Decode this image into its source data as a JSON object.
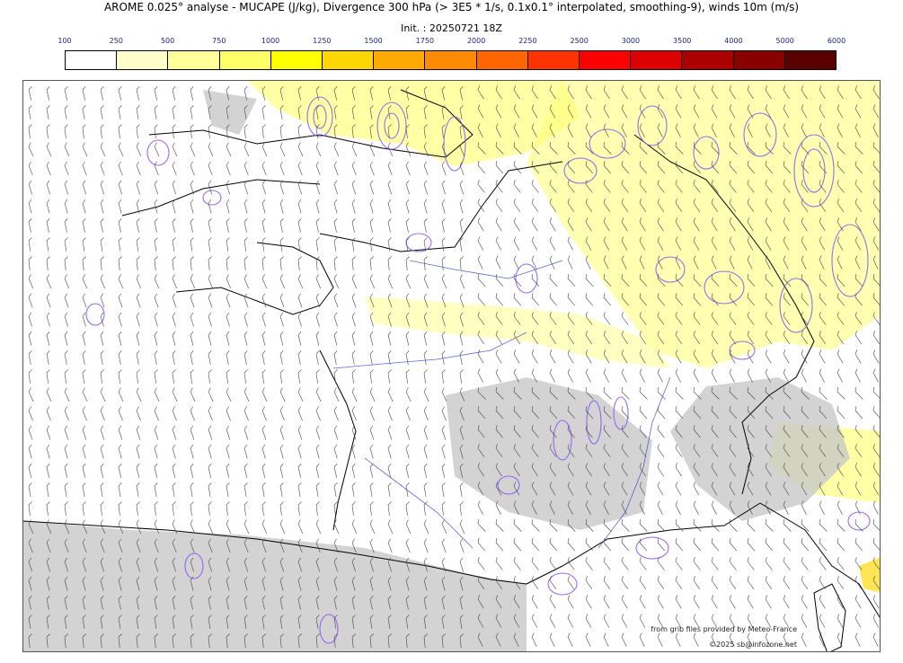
{
  "header": {
    "title": "AROME 0.025° analyse - MUCAPE (J/kg), Divergence 300 hPa (> 3E5 * 1/s, 0.1x0.1° interpolated, smoothing-9), winds 10m (m/s)",
    "init": "Init. : 20250721 18Z"
  },
  "colorbar": {
    "ticks": [
      "100",
      "250",
      "500",
      "750",
      "1000",
      "1250",
      "1500",
      "1750",
      "2000",
      "2250",
      "2500",
      "3000",
      "3500",
      "4000",
      "5000",
      "6000"
    ],
    "colors": [
      "#ffffff",
      "#ffffcc",
      "#ffff99",
      "#ffff66",
      "#ffff00",
      "#ffd700",
      "#ffaa00",
      "#ff8c00",
      "#ff6600",
      "#ff3300",
      "#ff0000",
      "#dd0000",
      "#aa0000",
      "#880000",
      "#5a0000"
    ]
  },
  "map": {
    "cape_fill_color": "#ffff66",
    "terrain_shade_color": "#c8c8c8",
    "divergence_contour_color": "#8a5cf5",
    "river_color": "#3344cc",
    "coastline_color": "#000000",
    "barb_color": "#333333"
  },
  "credits": {
    "source": "from grib files provided by Meteo-France",
    "copyright": "©2025 sb@infozone.net"
  }
}
